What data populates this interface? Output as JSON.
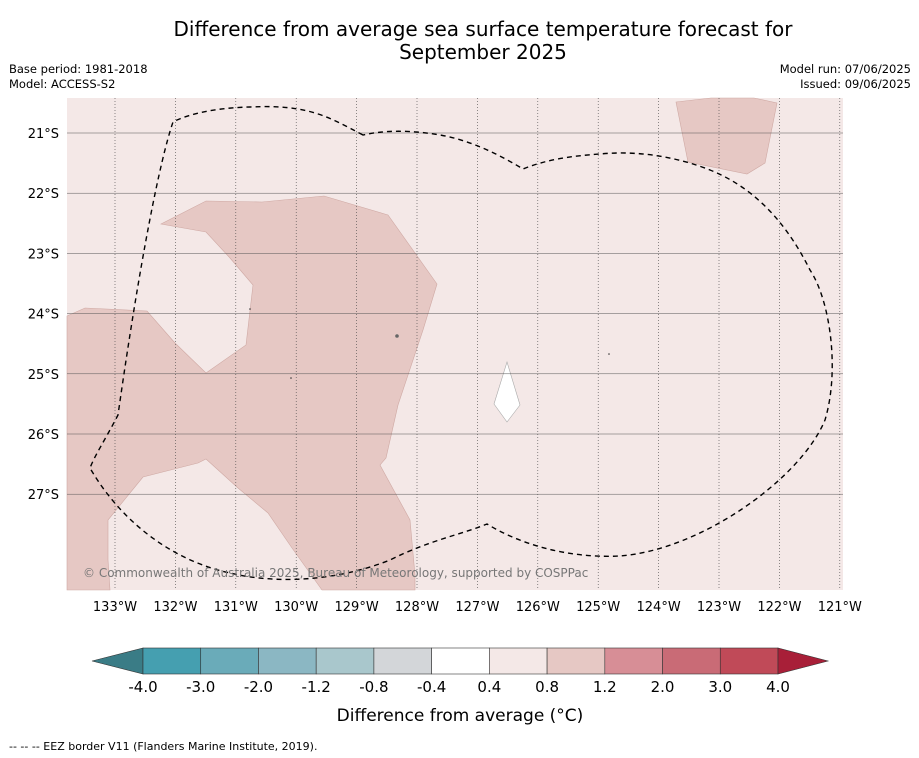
{
  "title_line1": "Difference from average sea surface temperature forecast for",
  "title_line2": "September 2025",
  "meta_left": {
    "base_period": "Base period: 1981-2018",
    "model": "Model: ACCESS-S2"
  },
  "meta_right": {
    "model_run": "Model run: 07/06/2025",
    "issued": "Issued: 09/06/2025"
  },
  "credit": "© Commonwealth of Australia 2025, Bureau of Meteorology, supported by COSPPac",
  "footnote": "--  --  -- EEZ border V11 (Flanders Marine Institute, 2019).",
  "map": {
    "lon_labels": [
      "133°W",
      "132°W",
      "131°W",
      "130°W",
      "129°W",
      "128°W",
      "127°W",
      "126°W",
      "125°W",
      "124°W",
      "123°W",
      "122°W",
      "121°W"
    ],
    "lat_labels": [
      "21°S",
      "22°S",
      "23°S",
      "24°S",
      "25°S",
      "26°S",
      "27°S"
    ],
    "background_color": "#f4e8e7",
    "warm_color": "#e6c8c4",
    "neutral_color": "#ffffff"
  },
  "colorbar": {
    "title": "Difference from average (°C)",
    "tick_labels": [
      "-4.0",
      "-3.0",
      "-2.0",
      "-1.2",
      "-0.8",
      "-0.4",
      "0.4",
      "0.8",
      "1.2",
      "2.0",
      "3.0",
      "4.0"
    ],
    "colors": [
      "#3a7c86",
      "#459fb0",
      "#6aabb9",
      "#8bb7c3",
      "#a9c7cc",
      "#d3d6d9",
      "#ffffff",
      "#f4e8e7",
      "#e6c8c4",
      "#d78e96",
      "#c96b76",
      "#c04a58",
      "#a81f38"
    ]
  }
}
